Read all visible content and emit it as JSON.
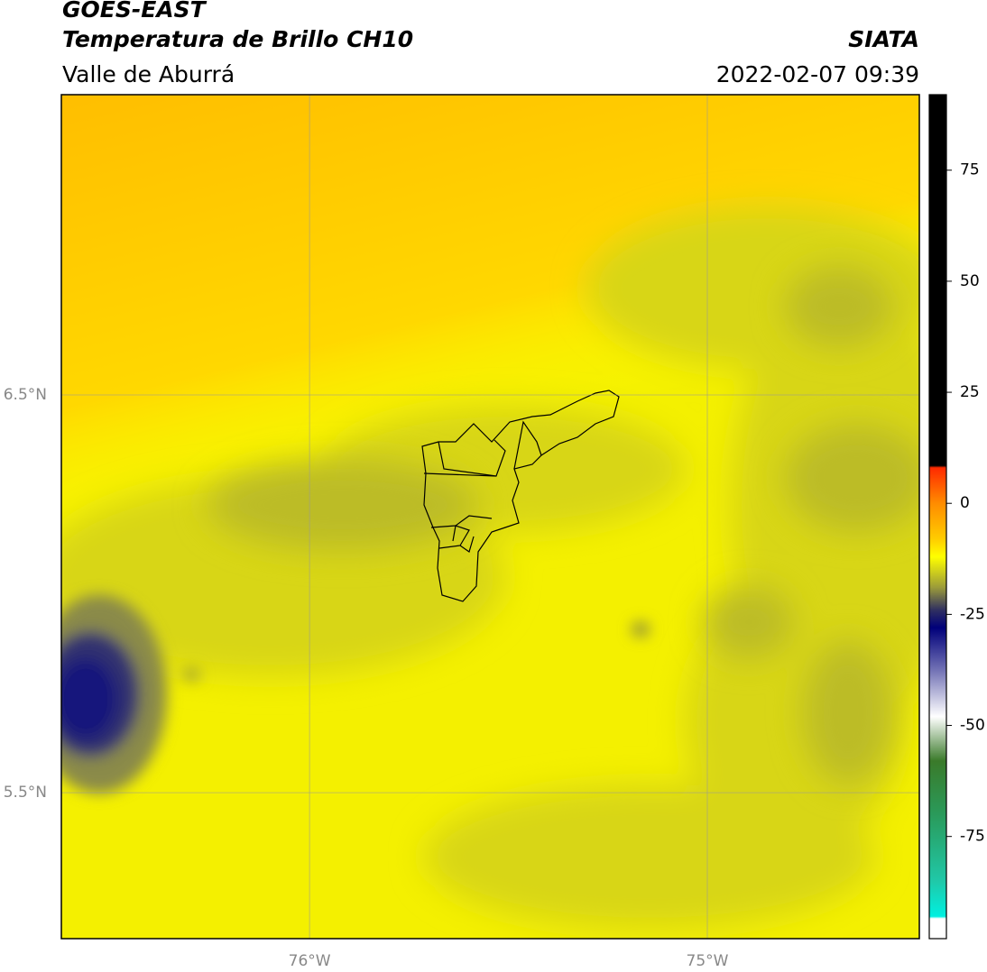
{
  "header": {
    "title": "GOES-EAST",
    "subtitle": "Temperatura de Brillo CH10",
    "region": "Valle de Aburrá",
    "source": "SIATA",
    "datetime": "2022-02-07 09:39"
  },
  "map": {
    "xlim": [
      -76.624,
      -74.467
    ],
    "ylim": [
      5.133,
      7.255
    ],
    "xticks": [
      {
        "value": -76,
        "label": "76°W"
      },
      {
        "value": -75,
        "label": "75°W"
      }
    ],
    "yticks": [
      {
        "value": 6.5,
        "label": "6.5°N"
      },
      {
        "value": 5.5,
        "label": "5.5°N"
      }
    ],
    "grid": true
  },
  "colorbar": {
    "lim": [
      -98,
      92
    ],
    "ticks": [
      75,
      50,
      25,
      0,
      -25,
      -50,
      -75
    ],
    "stops": [
      {
        "value": 92,
        "color": "#000000"
      },
      {
        "value": 8.5,
        "color": "#000000"
      },
      {
        "value": 8,
        "color": "#ff2a00"
      },
      {
        "value": 0,
        "color": "#ff8c00"
      },
      {
        "value": -8,
        "color": "#ffcc00"
      },
      {
        "value": -12,
        "color": "#ffff00"
      },
      {
        "value": -19,
        "color": "#9a9a3a"
      },
      {
        "value": -24,
        "color": "#303060"
      },
      {
        "value": -28,
        "color": "#00007a"
      },
      {
        "value": -38,
        "color": "#7878b8"
      },
      {
        "value": -48,
        "color": "#ffffff"
      },
      {
        "value": -58,
        "color": "#3a7a2a"
      },
      {
        "value": -70,
        "color": "#2a9a5a"
      },
      {
        "value": -85,
        "color": "#20c8a8"
      },
      {
        "value": -93,
        "color": "#00f0e0"
      },
      {
        "value": -93.5,
        "color": "#ffffff"
      },
      {
        "value": -98,
        "color": "#ffffff"
      }
    ]
  }
}
